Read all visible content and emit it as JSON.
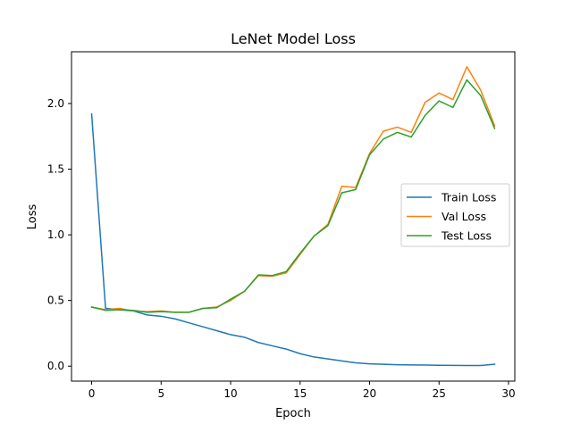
{
  "chart_data": {
    "type": "line",
    "title": "LeNet Model Loss",
    "xlabel": "Epoch",
    "ylabel": "Loss",
    "xlim": [
      -1.45,
      30.45
    ],
    "ylim": [
      -0.114,
      2.394
    ],
    "xticks": [
      0,
      5,
      10,
      15,
      20,
      25,
      30
    ],
    "xtick_labels": [
      "0",
      "5",
      "10",
      "15",
      "20",
      "25",
      "30"
    ],
    "yticks": [
      0.0,
      0.5,
      1.0,
      1.5,
      2.0
    ],
    "ytick_labels": [
      "0.0",
      "0.5",
      "1.0",
      "1.5",
      "2.0"
    ],
    "grid": false,
    "legend_position": "center-right",
    "x": [
      0,
      1,
      2,
      3,
      4,
      5,
      6,
      7,
      8,
      9,
      10,
      11,
      12,
      13,
      14,
      15,
      16,
      17,
      18,
      19,
      20,
      21,
      22,
      23,
      24,
      25,
      26,
      27,
      28,
      29
    ],
    "series": [
      {
        "name": "Train Loss",
        "color": "#1f77b4",
        "values": [
          1.92,
          0.44,
          0.43,
          0.42,
          0.39,
          0.38,
          0.36,
          0.33,
          0.3,
          0.27,
          0.24,
          0.22,
          0.18,
          0.155,
          0.13,
          0.095,
          0.07,
          0.055,
          0.04,
          0.025,
          0.018,
          0.014,
          0.011,
          0.009,
          0.008,
          0.007,
          0.006,
          0.005,
          0.005,
          0.015
        ]
      },
      {
        "name": "Val Loss",
        "color": "#ff7f0e",
        "values": [
          0.45,
          0.43,
          0.44,
          0.42,
          0.415,
          0.42,
          0.41,
          0.41,
          0.44,
          0.45,
          0.5,
          0.57,
          0.69,
          0.685,
          0.71,
          0.85,
          0.99,
          1.08,
          1.37,
          1.36,
          1.62,
          1.79,
          1.82,
          1.78,
          2.01,
          2.08,
          2.03,
          2.28,
          2.1,
          1.83
        ]
      },
      {
        "name": "Test Loss",
        "color": "#2ca02c",
        "values": [
          0.45,
          0.425,
          0.43,
          0.425,
          0.41,
          0.415,
          0.41,
          0.41,
          0.44,
          0.445,
          0.51,
          0.57,
          0.695,
          0.69,
          0.72,
          0.86,
          0.99,
          1.07,
          1.32,
          1.345,
          1.61,
          1.73,
          1.78,
          1.745,
          1.91,
          2.02,
          1.97,
          2.18,
          2.06,
          1.81
        ]
      }
    ]
  }
}
